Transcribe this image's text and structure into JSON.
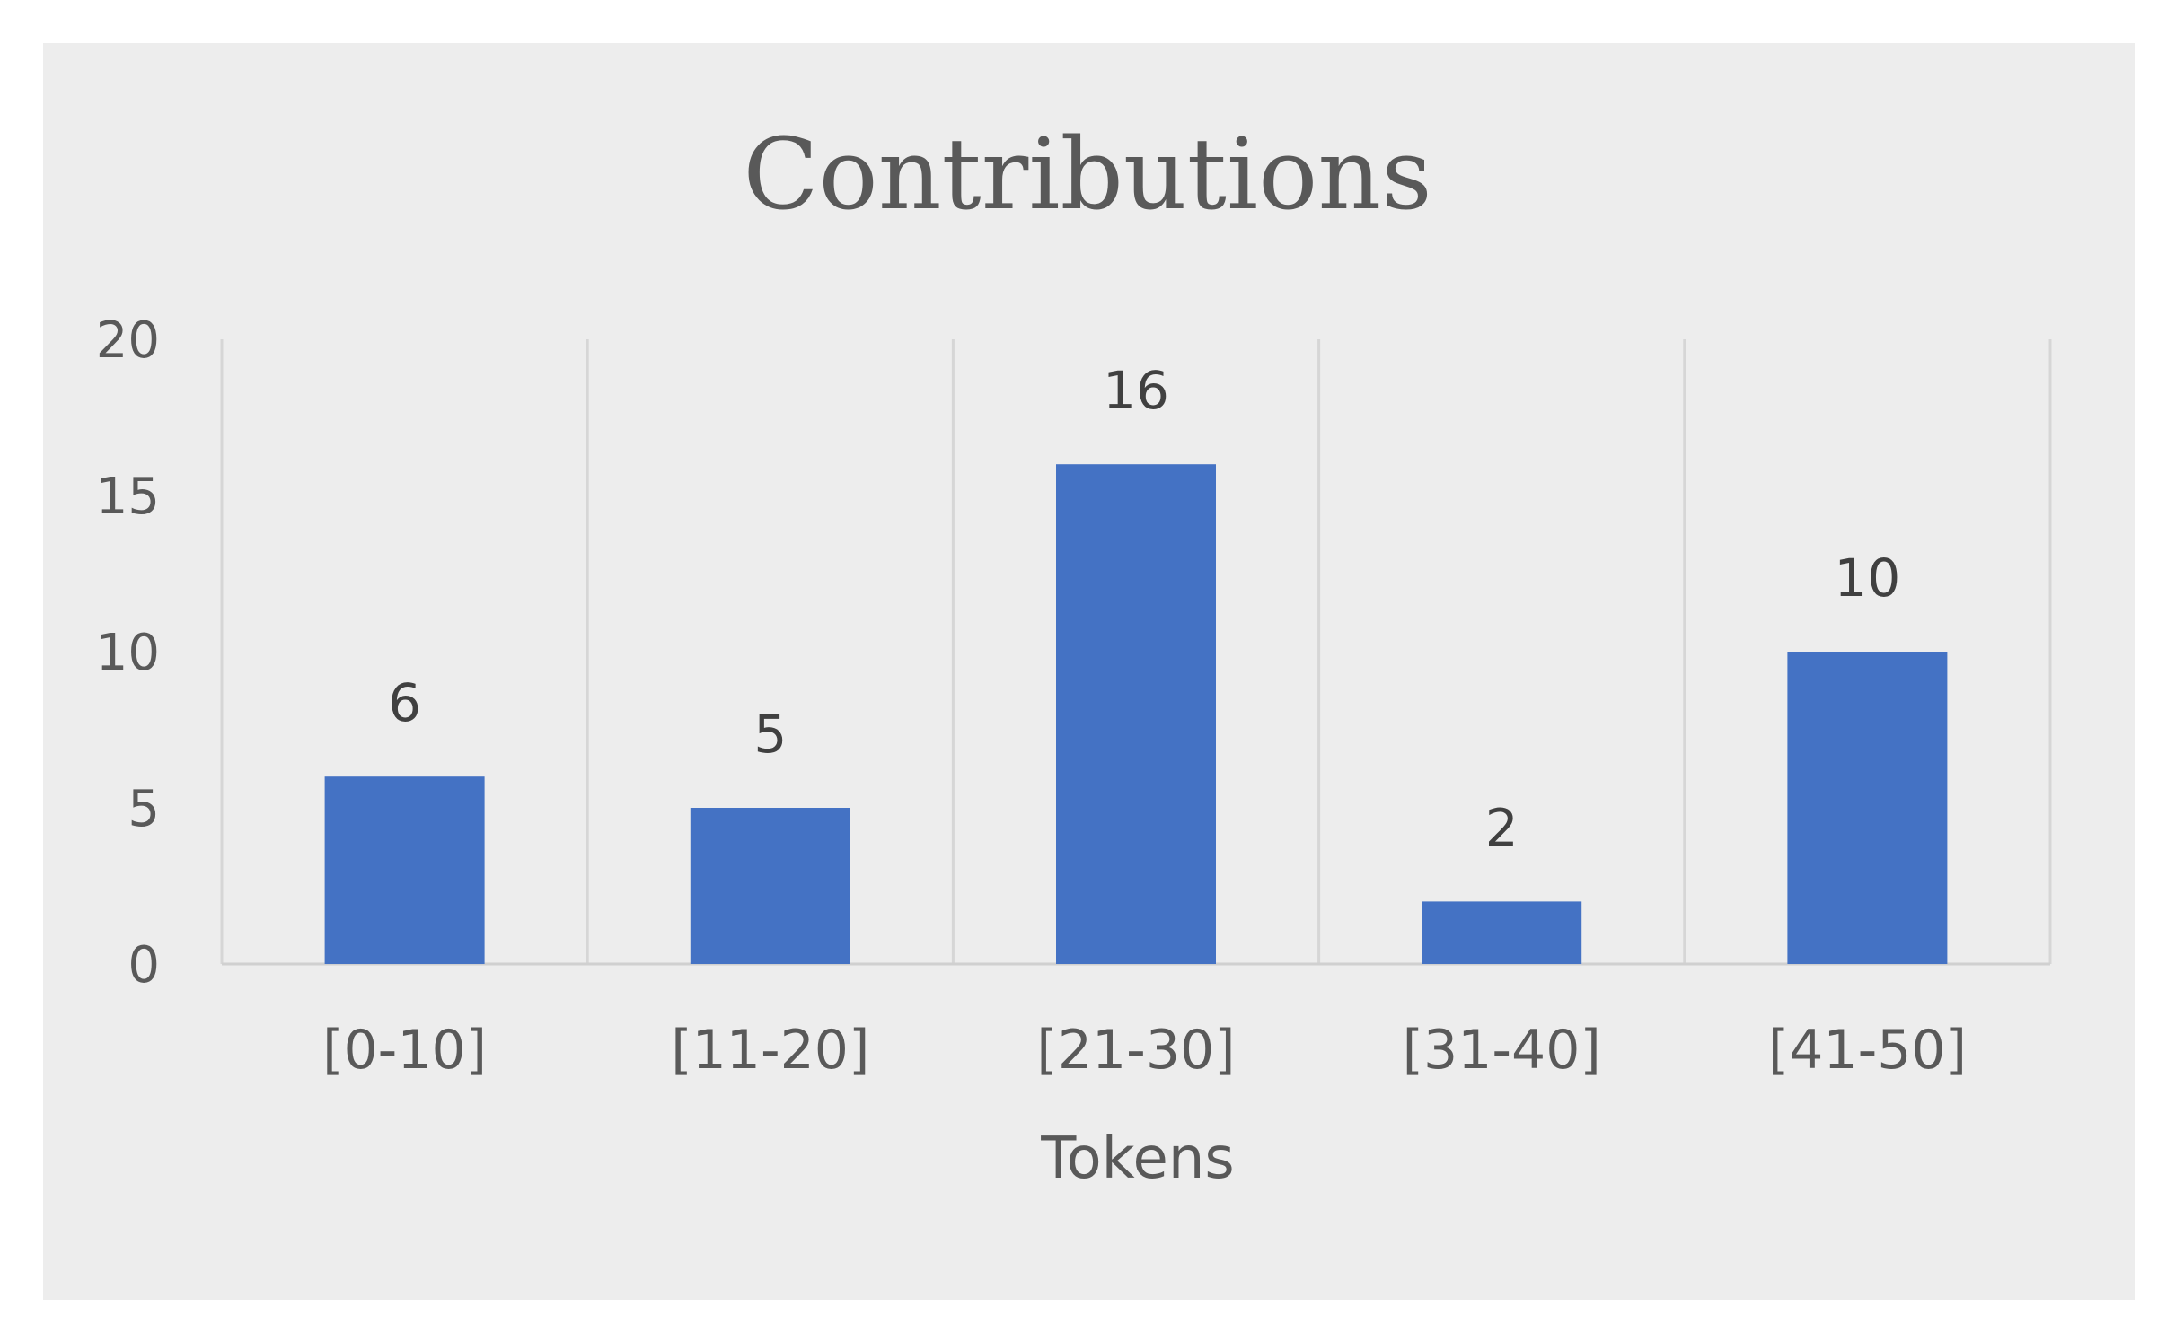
{
  "chart_data": {
    "type": "bar",
    "title": "Contributions",
    "xlabel": "Tokens",
    "ylabel": "",
    "categories": [
      "[0-10]",
      "[11-20]",
      "[21-30]",
      "[31-40]",
      "[41-50]"
    ],
    "values": [
      6,
      5,
      16,
      2,
      10
    ],
    "data_labels": [
      "6",
      "5",
      "16",
      "2",
      "10"
    ],
    "ylim": [
      0,
      20
    ],
    "yticks": [
      "0",
      "5",
      "10",
      "15",
      "20"
    ],
    "bar_color": "#4472c4",
    "background_color": "#ededed",
    "grid": "vertical separators",
    "legend": "none"
  }
}
